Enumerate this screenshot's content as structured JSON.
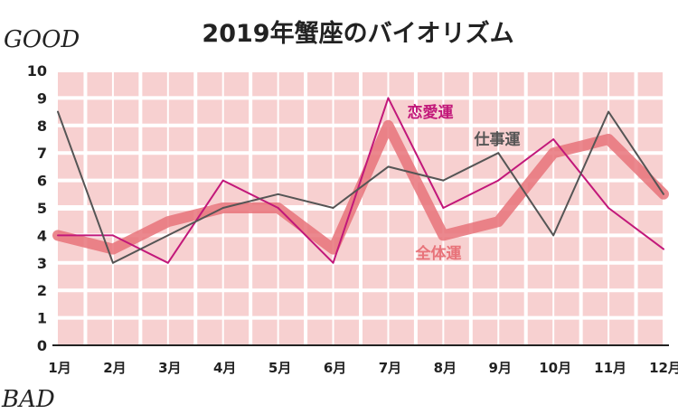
{
  "chart_data": {
    "type": "line",
    "title": "2019年蟹座のバイオリズム",
    "top_label": "GOOD",
    "bottom_label": "BAD",
    "categories": [
      "1月",
      "2月",
      "3月",
      "4月",
      "5月",
      "6月",
      "7月",
      "8月",
      "9月",
      "10月",
      "11月",
      "12月"
    ],
    "y_ticks": [
      "0",
      "1",
      "2",
      "3",
      "4",
      "5",
      "6",
      "7",
      "8",
      "9",
      "10"
    ],
    "ylim": [
      0,
      10
    ],
    "grid": true,
    "legend": "labels placed next to lines",
    "colors": {
      "background_band": "#f7d0d0",
      "grid": "#ffffff",
      "zero_line": "#222222"
    },
    "series": [
      {
        "name": "全体運",
        "color": "#e8737a",
        "values": [
          4,
          3.5,
          4.5,
          5,
          5,
          3.5,
          8,
          4,
          4.5,
          7,
          7.5,
          5.5
        ]
      },
      {
        "name": "恋愛運",
        "color": "#c2187a",
        "values": [
          4,
          4,
          3,
          6,
          5,
          3,
          9,
          5,
          6,
          7.5,
          5,
          3.5
        ]
      },
      {
        "name": "仕事運",
        "color": "#555555",
        "values": [
          8.5,
          3,
          4,
          5,
          5.5,
          5,
          6.5,
          6,
          7,
          4,
          8.5,
          5.5
        ]
      }
    ]
  }
}
